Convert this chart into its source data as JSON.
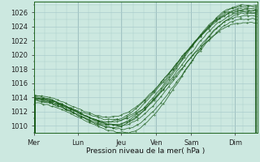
{
  "title": "",
  "xlabel": "Pression niveau de la mer( hPa )",
  "ylabel": "",
  "background_color": "#cce8e0",
  "plot_background": "#cce8e0",
  "grid_color": "#aacccc",
  "line_color": "#1a5c1a",
  "line_color2": "#2d7a2d",
  "ylim": [
    1009.0,
    1027.5
  ],
  "xlim_max": 7.3,
  "xtick_labels": [
    "Mer",
    "Lun",
    "Jeu",
    "Ven",
    "Sam",
    "Dim"
  ],
  "xtick_positions": [
    0.0,
    1.43,
    2.86,
    4.0,
    5.14,
    6.57
  ],
  "num_points": 170
}
